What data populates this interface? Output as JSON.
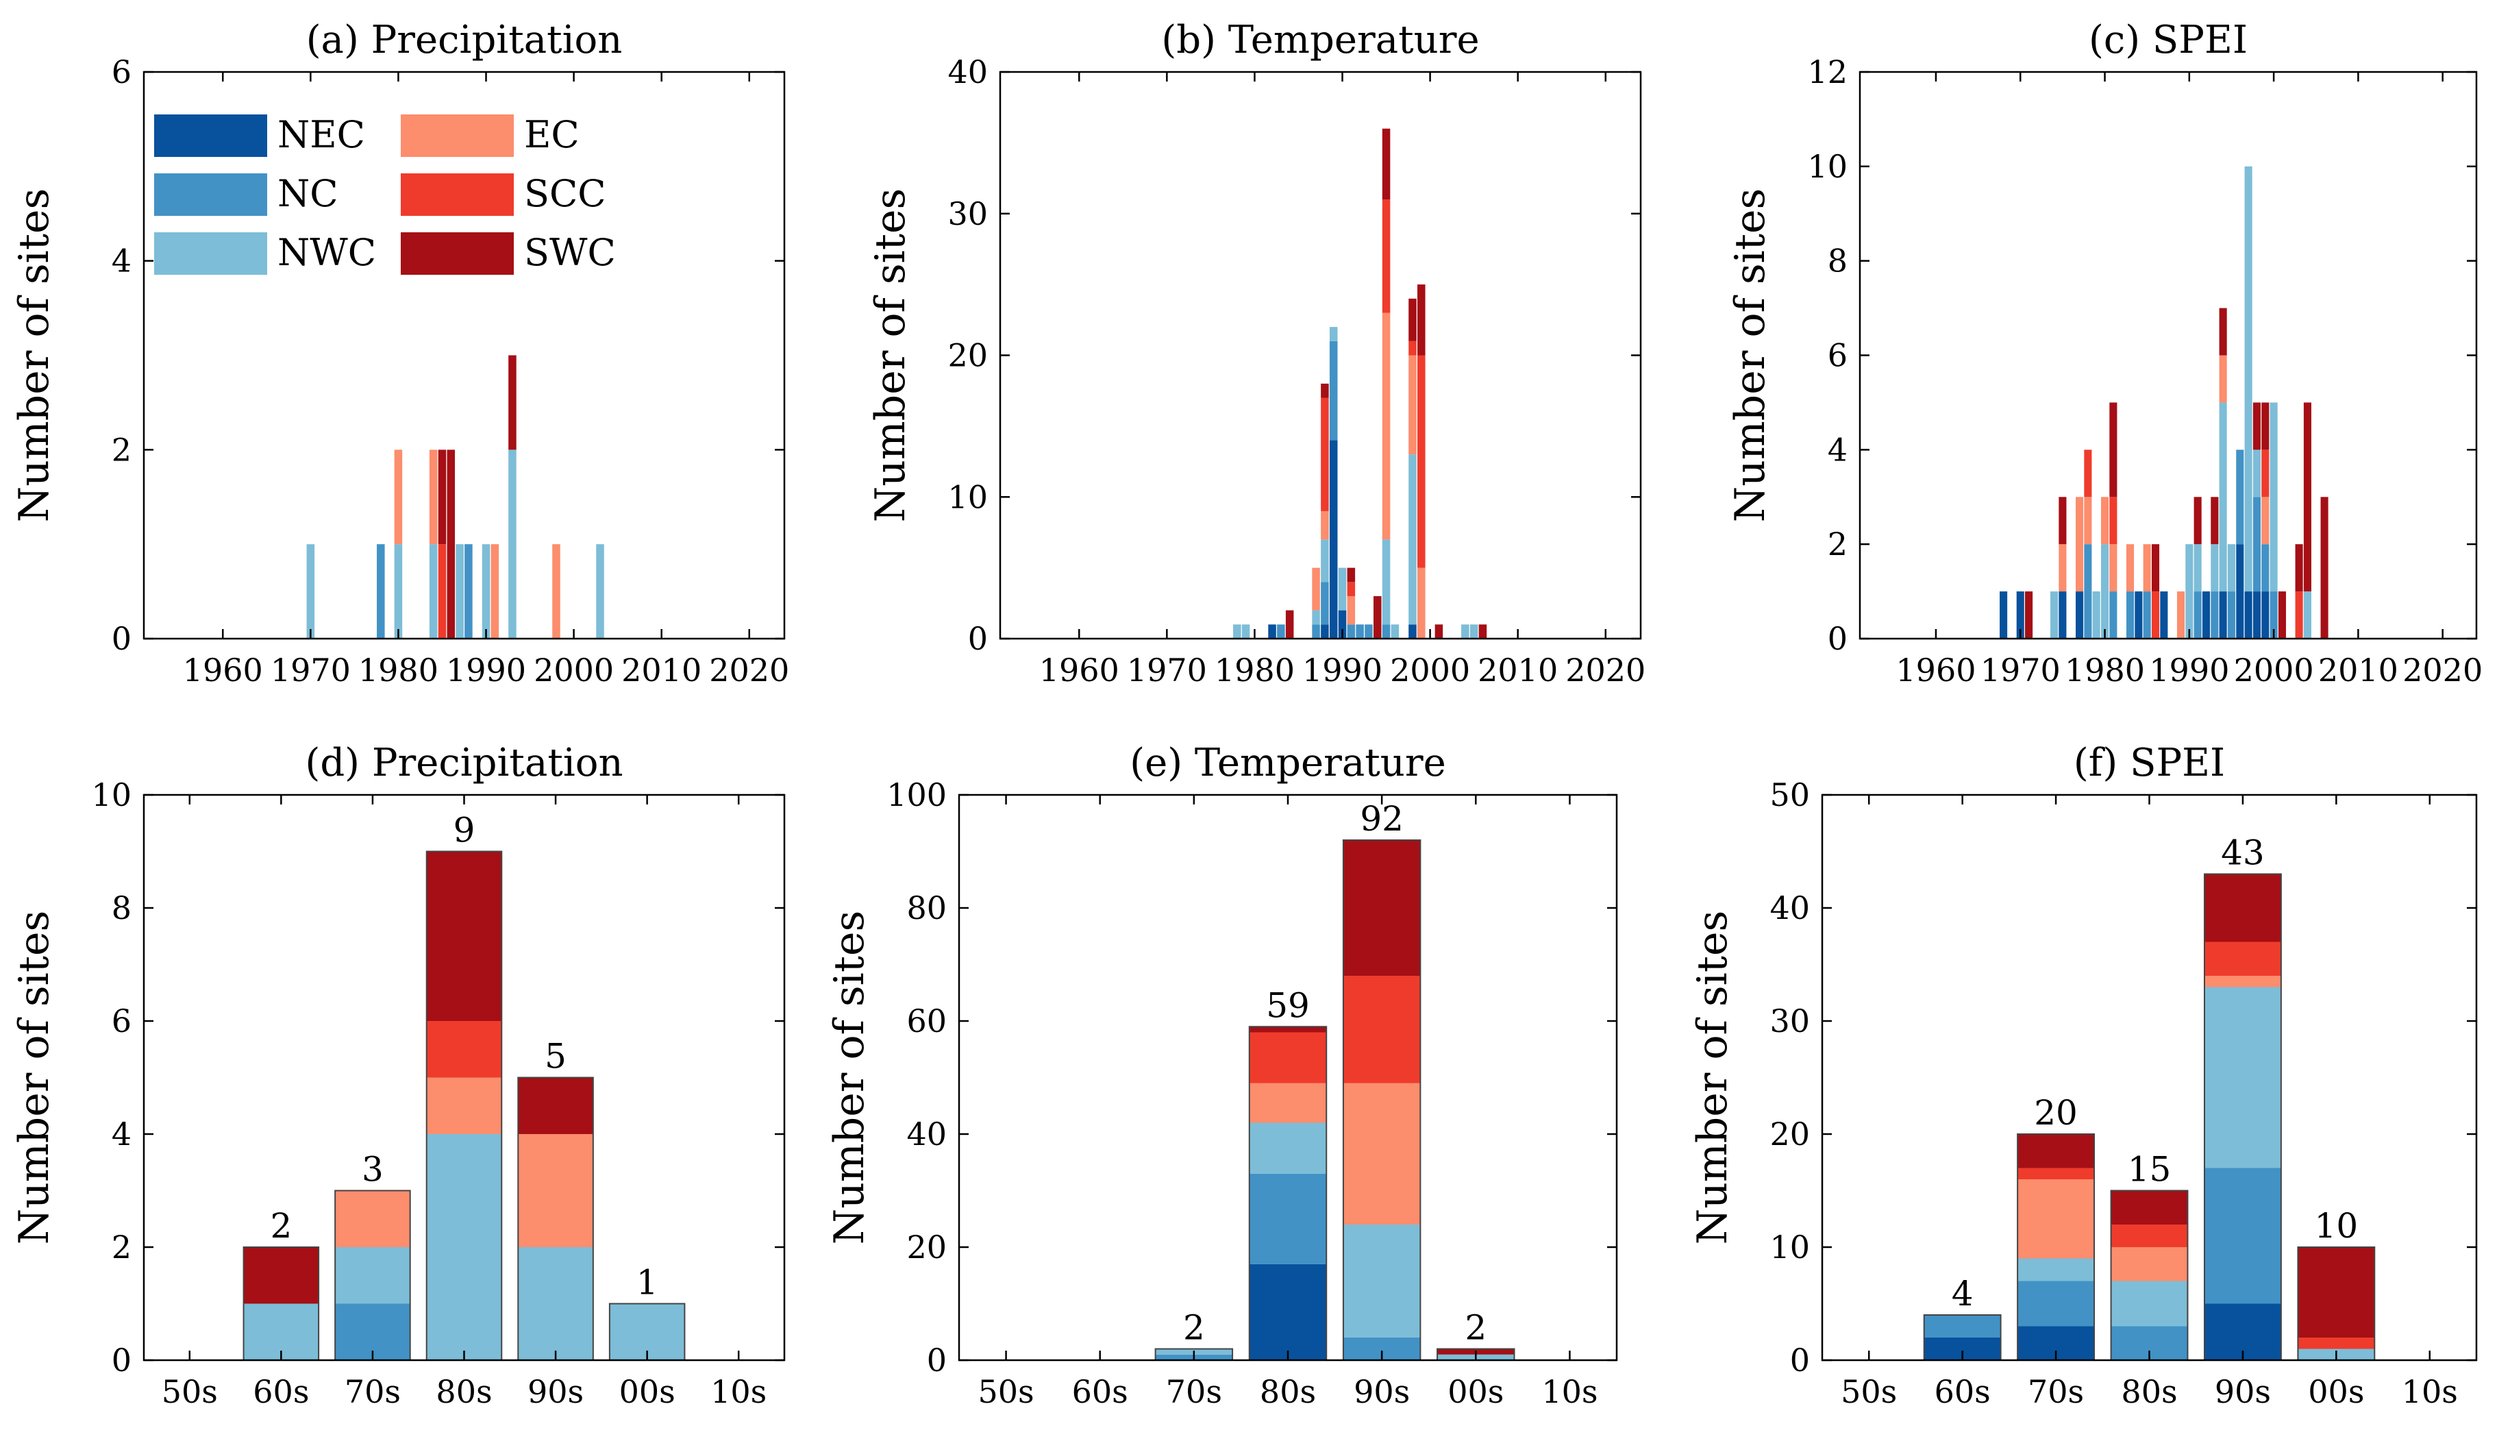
{
  "regions": [
    {
      "name": "NEC",
      "color": "#08519c"
    },
    {
      "name": "NC",
      "color": "#4292c6"
    },
    {
      "name": "NWC",
      "color": "#7dbdd7"
    },
    {
      "name": "EC",
      "color": "#fc8d6d"
    },
    {
      "name": "SCC",
      "color": "#ef3b2c"
    },
    {
      "name": "SWC",
      "color": "#a50f15"
    }
  ],
  "ylabel": "Number of sites",
  "chart_data": [
    {
      "id": "a",
      "type": "bar",
      "stacked": true,
      "title": "(a) Precipitation",
      "xlim": [
        1951,
        2024
      ],
      "xticks": [
        1960,
        1970,
        1980,
        1990,
        2000,
        2010,
        2020
      ],
      "ylim": [
        0,
        6
      ],
      "yticks": [
        0,
        2,
        4,
        6
      ],
      "bar_width": 0.9,
      "legend": "top-left",
      "bars": [
        {
          "x": 1970,
          "values": [
            0,
            0,
            1,
            0,
            0,
            0
          ]
        },
        {
          "x": 1978,
          "values": [
            0,
            1,
            0,
            0,
            0,
            0
          ]
        },
        {
          "x": 1980,
          "values": [
            0,
            0,
            1,
            1,
            0,
            0
          ]
        },
        {
          "x": 1984,
          "values": [
            0,
            0,
            1,
            1,
            0,
            0
          ]
        },
        {
          "x": 1985,
          "values": [
            0,
            0,
            0,
            0,
            1,
            1
          ]
        },
        {
          "x": 1986,
          "values": [
            0,
            0,
            0,
            0,
            0,
            2
          ]
        },
        {
          "x": 1987,
          "values": [
            0,
            0,
            1,
            0,
            0,
            0
          ]
        },
        {
          "x": 1988,
          "values": [
            0,
            1,
            0,
            0,
            0,
            0
          ]
        },
        {
          "x": 1990,
          "values": [
            0,
            0,
            1,
            0,
            0,
            0
          ]
        },
        {
          "x": 1991,
          "values": [
            0,
            0,
            0,
            1,
            0,
            0
          ]
        },
        {
          "x": 1993,
          "values": [
            0,
            0,
            2,
            0,
            0,
            1
          ]
        },
        {
          "x": 1998,
          "values": [
            0,
            0,
            0,
            1,
            0,
            0
          ]
        },
        {
          "x": 2003,
          "values": [
            0,
            0,
            1,
            0,
            0,
            0
          ]
        }
      ]
    },
    {
      "id": "b",
      "type": "bar",
      "stacked": true,
      "title": "(b) Temperature",
      "xlim": [
        1951,
        2024
      ],
      "xticks": [
        1960,
        1970,
        1980,
        1990,
        2000,
        2010,
        2020
      ],
      "ylim": [
        0,
        40
      ],
      "yticks": [
        0,
        10,
        20,
        30,
        40
      ],
      "bar_width": 0.9,
      "bars": [
        {
          "x": 1978,
          "values": [
            0,
            0,
            1,
            0,
            0,
            0
          ]
        },
        {
          "x": 1979,
          "values": [
            0,
            0,
            1,
            0,
            0,
            0
          ]
        },
        {
          "x": 1982,
          "values": [
            1,
            0,
            0,
            0,
            0,
            0
          ]
        },
        {
          "x": 1983,
          "values": [
            0,
            1,
            0,
            0,
            0,
            0
          ]
        },
        {
          "x": 1984,
          "values": [
            0,
            0,
            0,
            0,
            0,
            2
          ]
        },
        {
          "x": 1987,
          "values": [
            0,
            1,
            1,
            3,
            0,
            0
          ]
        },
        {
          "x": 1988,
          "values": [
            1,
            3,
            3,
            2,
            8,
            1
          ]
        },
        {
          "x": 1989,
          "values": [
            14,
            7,
            1,
            0,
            0,
            0
          ]
        },
        {
          "x": 1990,
          "values": [
            2,
            0,
            3,
            0,
            0,
            0
          ]
        },
        {
          "x": 1991,
          "values": [
            0,
            1,
            0,
            2,
            1,
            1
          ]
        },
        {
          "x": 1992,
          "values": [
            0,
            1,
            0,
            0,
            0,
            0
          ]
        },
        {
          "x": 1993,
          "values": [
            0,
            1,
            0,
            0,
            0,
            0
          ]
        },
        {
          "x": 1994,
          "values": [
            0,
            0,
            0,
            0,
            0,
            3
          ]
        },
        {
          "x": 1995,
          "values": [
            0,
            1,
            6,
            16,
            8,
            5
          ]
        },
        {
          "x": 1996,
          "values": [
            0,
            0,
            1,
            0,
            0,
            0
          ]
        },
        {
          "x": 1998,
          "values": [
            1,
            0,
            12,
            7,
            1,
            3
          ]
        },
        {
          "x": 1999,
          "values": [
            0,
            0,
            0,
            5,
            15,
            5
          ]
        },
        {
          "x": 2001,
          "values": [
            0,
            0,
            0,
            0,
            0,
            1
          ]
        },
        {
          "x": 2004,
          "values": [
            0,
            0,
            1,
            0,
            0,
            0
          ]
        },
        {
          "x": 2005,
          "values": [
            0,
            0,
            1,
            0,
            0,
            0
          ]
        },
        {
          "x": 2006,
          "values": [
            0,
            0,
            0,
            0,
            0,
            1
          ]
        }
      ]
    },
    {
      "id": "c",
      "type": "bar",
      "stacked": true,
      "title": "(c) SPEI",
      "xlim": [
        1951,
        2024
      ],
      "xticks": [
        1960,
        1970,
        1980,
        1990,
        2000,
        2010,
        2020
      ],
      "ylim": [
        0,
        12
      ],
      "yticks": [
        0,
        2,
        4,
        6,
        8,
        10,
        12
      ],
      "bar_width": 0.9,
      "bars": [
        {
          "x": 1968,
          "values": [
            1,
            0,
            0,
            0,
            0,
            0
          ]
        },
        {
          "x": 1970,
          "values": [
            1,
            0,
            0,
            0,
            0,
            0
          ]
        },
        {
          "x": 1971,
          "values": [
            0,
            0,
            0,
            0,
            0,
            1
          ]
        },
        {
          "x": 1974,
          "values": [
            0,
            0,
            1,
            0,
            0,
            0
          ]
        },
        {
          "x": 1975,
          "values": [
            1,
            0,
            0,
            1,
            0,
            1
          ]
        },
        {
          "x": 1977,
          "values": [
            1,
            0,
            0,
            2,
            0,
            0
          ]
        },
        {
          "x": 1978,
          "values": [
            0,
            2,
            0,
            1,
            1,
            0
          ]
        },
        {
          "x": 1979,
          "values": [
            0,
            0,
            1,
            0,
            0,
            0
          ]
        },
        {
          "x": 1980,
          "values": [
            0,
            0,
            2,
            1,
            0,
            0
          ]
        },
        {
          "x": 1981,
          "values": [
            0,
            1,
            0,
            1,
            1,
            2
          ]
        },
        {
          "x": 1983,
          "values": [
            0,
            1,
            0,
            1,
            0,
            0
          ]
        },
        {
          "x": 1984,
          "values": [
            1,
            0,
            0,
            0,
            0,
            0
          ]
        },
        {
          "x": 1985,
          "values": [
            0,
            1,
            0,
            1,
            0,
            0
          ]
        },
        {
          "x": 1986,
          "values": [
            0,
            0,
            0,
            0,
            1,
            1
          ]
        },
        {
          "x": 1987,
          "values": [
            1,
            0,
            0,
            0,
            0,
            0
          ]
        },
        {
          "x": 1989,
          "values": [
            0,
            0,
            0,
            1,
            0,
            0
          ]
        },
        {
          "x": 1990,
          "values": [
            0,
            0,
            2,
            0,
            0,
            0
          ]
        },
        {
          "x": 1991,
          "values": [
            0,
            1,
            1,
            0,
            0,
            1
          ]
        },
        {
          "x": 1992,
          "values": [
            1,
            0,
            0,
            0,
            0,
            0
          ]
        },
        {
          "x": 1993,
          "values": [
            0,
            1,
            1,
            0,
            0,
            1
          ]
        },
        {
          "x": 1994,
          "values": [
            1,
            0,
            4,
            1,
            0,
            1
          ]
        },
        {
          "x": 1995,
          "values": [
            0,
            1,
            1,
            0,
            0,
            0
          ]
        },
        {
          "x": 1996,
          "values": [
            2,
            2,
            0,
            0,
            0,
            0
          ]
        },
        {
          "x": 1997,
          "values": [
            1,
            0,
            9,
            0,
            0,
            0
          ]
        },
        {
          "x": 1998,
          "values": [
            1,
            2,
            1,
            0,
            0,
            1
          ]
        },
        {
          "x": 1999,
          "values": [
            1,
            1,
            0,
            1,
            1,
            1
          ]
        },
        {
          "x": 2000,
          "values": [
            0,
            1,
            4,
            0,
            0,
            0
          ]
        },
        {
          "x": 2001,
          "values": [
            0,
            0,
            0,
            0,
            0,
            1
          ]
        },
        {
          "x": 2003,
          "values": [
            0,
            0,
            0,
            0,
            1,
            1
          ]
        },
        {
          "x": 2004,
          "values": [
            0,
            0,
            1,
            0,
            0,
            4
          ]
        },
        {
          "x": 2006,
          "values": [
            0,
            0,
            0,
            0,
            0,
            3
          ]
        }
      ]
    },
    {
      "id": "d",
      "type": "bar",
      "stacked": true,
      "title": "(d) Precipitation",
      "categories": [
        "50s",
        "60s",
        "70s",
        "80s",
        "90s",
        "00s",
        "10s"
      ],
      "ylim": [
        0,
        10
      ],
      "yticks": [
        0,
        2,
        4,
        6,
        8,
        10
      ],
      "bar_width": 0.82,
      "values": [
        [
          0,
          0,
          0,
          0,
          0,
          0
        ],
        [
          0,
          0,
          1,
          0,
          0,
          1
        ],
        [
          0,
          1,
          1,
          1,
          0,
          0
        ],
        [
          0,
          0,
          4,
          1,
          1,
          3
        ],
        [
          0,
          0,
          2,
          2,
          0,
          1
        ],
        [
          0,
          0,
          1,
          0,
          0,
          0
        ],
        [
          0,
          0,
          0,
          0,
          0,
          0
        ]
      ],
      "totals": [
        "",
        "2",
        "3",
        "9",
        "5",
        "1",
        ""
      ]
    },
    {
      "id": "e",
      "type": "bar",
      "stacked": true,
      "title": "(e) Temperature",
      "categories": [
        "50s",
        "60s",
        "70s",
        "80s",
        "90s",
        "00s",
        "10s"
      ],
      "ylim": [
        0,
        100
      ],
      "yticks": [
        0,
        20,
        40,
        60,
        80,
        100
      ],
      "bar_width": 0.82,
      "values": [
        [
          0,
          0,
          0,
          0,
          0,
          0
        ],
        [
          0,
          0,
          0,
          0,
          0,
          0
        ],
        [
          0,
          1,
          1,
          0,
          0,
          0
        ],
        [
          17,
          16,
          9,
          7,
          9,
          1
        ],
        [
          0,
          4,
          20,
          25,
          19,
          24
        ],
        [
          0,
          0,
          1,
          0,
          0,
          1
        ],
        [
          0,
          0,
          0,
          0,
          0,
          0
        ]
      ],
      "totals": [
        "",
        "",
        "2",
        "59",
        "92",
        "2",
        ""
      ]
    },
    {
      "id": "f",
      "type": "bar",
      "stacked": true,
      "title": "(f) SPEI",
      "categories": [
        "50s",
        "60s",
        "70s",
        "80s",
        "90s",
        "00s",
        "10s"
      ],
      "ylim": [
        0,
        50
      ],
      "yticks": [
        0,
        10,
        20,
        30,
        40,
        50
      ],
      "bar_width": 0.82,
      "values": [
        [
          0,
          0,
          0,
          0,
          0,
          0
        ],
        [
          2,
          2,
          0,
          0,
          0,
          0
        ],
        [
          3,
          4,
          2,
          7,
          1,
          3
        ],
        [
          0,
          3,
          4,
          3,
          2,
          3
        ],
        [
          5,
          12,
          16,
          1,
          3,
          6
        ],
        [
          0,
          0,
          1,
          0,
          1,
          8
        ],
        [
          0,
          0,
          0,
          0,
          0,
          0
        ]
      ],
      "totals": [
        "",
        "4",
        "20",
        "15",
        "43",
        "10",
        ""
      ]
    }
  ]
}
